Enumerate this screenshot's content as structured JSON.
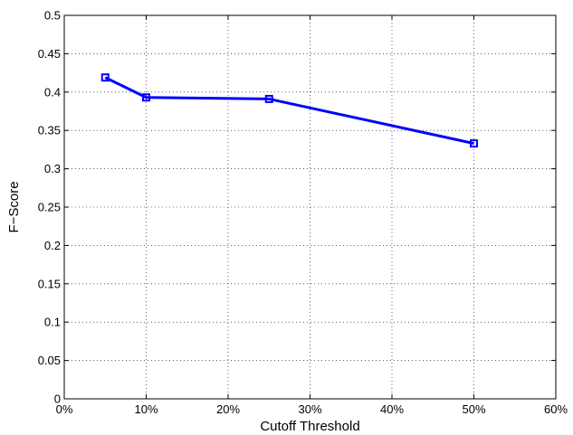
{
  "chart_data": {
    "type": "line",
    "title": "",
    "xlabel": "Cutoff Threshold",
    "ylabel": "F−Score",
    "xlim": [
      0,
      60
    ],
    "ylim": [
      0,
      0.5
    ],
    "xticks": [
      0,
      10,
      20,
      30,
      40,
      50,
      60
    ],
    "xtick_labels": [
      "0%",
      "10%",
      "20%",
      "30%",
      "40%",
      "50%",
      "60%"
    ],
    "yticks": [
      0,
      0.05,
      0.1,
      0.15,
      0.2,
      0.25,
      0.3,
      0.35,
      0.4,
      0.45,
      0.5
    ],
    "ytick_labels": [
      "0",
      "0.05",
      "0.1",
      "0.15",
      "0.2",
      "0.25",
      "0.3",
      "0.35",
      "0.4",
      "0.45",
      "0.5"
    ],
    "grid": true,
    "series": [
      {
        "x": [
          5,
          10,
          25,
          50
        ],
        "y": [
          0.419,
          0.393,
          0.391,
          0.333
        ],
        "color": "#0000ff",
        "marker": "square"
      }
    ]
  }
}
